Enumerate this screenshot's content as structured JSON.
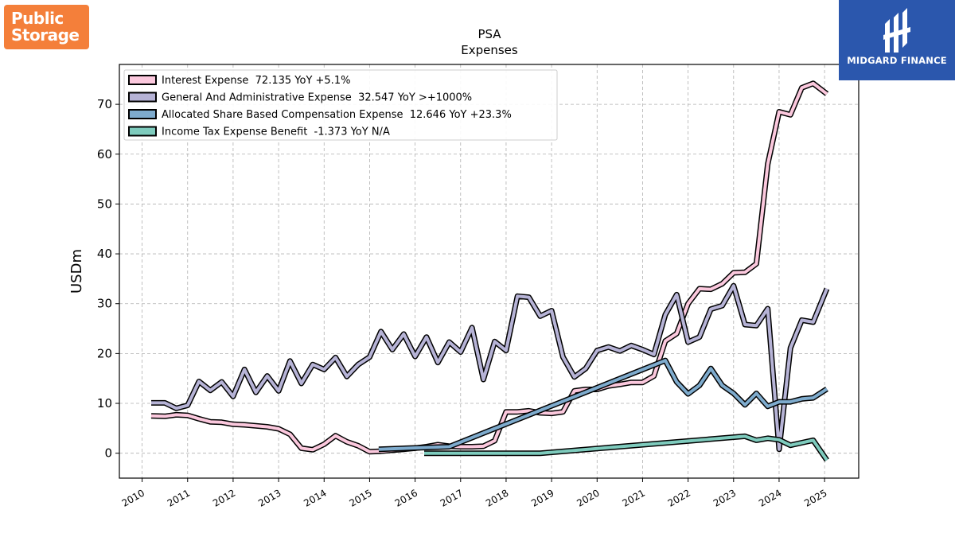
{
  "logos": {
    "left": {
      "line1": "Public",
      "line2": "Storage"
    },
    "right": {
      "text": "MIDGARD FINANCE"
    }
  },
  "colors": {
    "interest": "#fbc8dd",
    "ga": "#b6b3d6",
    "sbc": "#7eabcd",
    "tax": "#7ecbbd"
  },
  "chart_data": {
    "type": "line",
    "title": "PSA",
    "subtitle": "Expenses",
    "xlabel": "",
    "ylabel": "USDm",
    "xlim": [
      2009.5,
      2025.75
    ],
    "ylim": [
      -5,
      78
    ],
    "x_ticks": [
      "2010",
      "2011",
      "2012",
      "2013",
      "2014",
      "2015",
      "2016",
      "2017",
      "2018",
      "2019",
      "2020",
      "2021",
      "2022",
      "2023",
      "2024",
      "2025"
    ],
    "y_ticks": [
      0,
      10,
      20,
      30,
      40,
      50,
      60,
      70
    ],
    "grid": true,
    "legend_position": "top-left",
    "series": [
      {
        "name": "Interest Expense  72.135 YoY +5.1%",
        "color": "#fbc8dd",
        "points": [
          [
            2010.2,
            7.5
          ],
          [
            2010.5,
            7.4
          ],
          [
            2010.75,
            7.7
          ],
          [
            2011.0,
            7.6
          ],
          [
            2011.25,
            6.9
          ],
          [
            2011.5,
            6.3
          ],
          [
            2011.75,
            6.2
          ],
          [
            2012.0,
            5.8
          ],
          [
            2012.25,
            5.7
          ],
          [
            2012.5,
            5.5
          ],
          [
            2012.75,
            5.3
          ],
          [
            2013.0,
            4.9
          ],
          [
            2013.25,
            3.8
          ],
          [
            2013.5,
            1.0
          ],
          [
            2013.75,
            0.7
          ],
          [
            2014.0,
            1.8
          ],
          [
            2014.25,
            3.5
          ],
          [
            2014.5,
            2.3
          ],
          [
            2014.75,
            1.5
          ],
          [
            2015.0,
            0.3
          ],
          [
            2015.25,
            0.4
          ],
          [
            2015.5,
            0.6
          ],
          [
            2015.75,
            0.8
          ],
          [
            2016.0,
            1.0
          ],
          [
            2016.25,
            1.3
          ],
          [
            2016.5,
            1.7
          ],
          [
            2016.75,
            1.4
          ],
          [
            2017.0,
            1.3
          ],
          [
            2017.25,
            1.3
          ],
          [
            2017.5,
            1.4
          ],
          [
            2017.75,
            2.5
          ],
          [
            2018.0,
            8.3
          ],
          [
            2018.25,
            8.3
          ],
          [
            2018.5,
            8.5
          ],
          [
            2018.75,
            8.1
          ],
          [
            2019.0,
            8.0
          ],
          [
            2019.25,
            8.3
          ],
          [
            2019.5,
            12.5
          ],
          [
            2019.75,
            12.8
          ],
          [
            2020.0,
            12.8
          ],
          [
            2020.25,
            13.5
          ],
          [
            2020.5,
            13.8
          ],
          [
            2020.75,
            14.2
          ],
          [
            2021.0,
            14.2
          ],
          [
            2021.25,
            15.5
          ],
          [
            2021.5,
            22.5
          ],
          [
            2021.75,
            24.0
          ],
          [
            2022.0,
            30.0
          ],
          [
            2022.25,
            33.0
          ],
          [
            2022.5,
            32.9
          ],
          [
            2022.75,
            34.0
          ],
          [
            2023.0,
            36.2
          ],
          [
            2023.25,
            36.3
          ],
          [
            2023.5,
            38.0
          ],
          [
            2023.75,
            58.0
          ],
          [
            2024.0,
            68.5
          ],
          [
            2024.25,
            67.9
          ],
          [
            2024.5,
            73.3
          ],
          [
            2024.75,
            74.2
          ],
          [
            2025.05,
            72.1
          ]
        ]
      },
      {
        "name": "General And Administrative Expense  32.547 YoY >+1000%",
        "color": "#b6b3d6",
        "points": [
          [
            2010.2,
            10.1
          ],
          [
            2010.5,
            10.1
          ],
          [
            2010.75,
            9.0
          ],
          [
            2011.0,
            9.6
          ],
          [
            2011.25,
            14.4
          ],
          [
            2011.5,
            12.6
          ],
          [
            2011.75,
            14.3
          ],
          [
            2012.0,
            11.4
          ],
          [
            2012.25,
            16.8
          ],
          [
            2012.5,
            12.2
          ],
          [
            2012.75,
            15.5
          ],
          [
            2013.0,
            12.5
          ],
          [
            2013.25,
            18.5
          ],
          [
            2013.5,
            14.0
          ],
          [
            2013.75,
            17.8
          ],
          [
            2014.0,
            16.8
          ],
          [
            2014.25,
            19.2
          ],
          [
            2014.5,
            15.4
          ],
          [
            2014.75,
            17.8
          ],
          [
            2015.0,
            19.3
          ],
          [
            2015.25,
            24.4
          ],
          [
            2015.5,
            20.8
          ],
          [
            2015.75,
            23.9
          ],
          [
            2016.0,
            19.4
          ],
          [
            2016.25,
            23.3
          ],
          [
            2016.5,
            18.2
          ],
          [
            2016.75,
            22.3
          ],
          [
            2017.0,
            20.3
          ],
          [
            2017.25,
            25.2
          ],
          [
            2017.5,
            14.8
          ],
          [
            2017.75,
            22.4
          ],
          [
            2018.0,
            20.6
          ],
          [
            2018.25,
            31.5
          ],
          [
            2018.5,
            31.3
          ],
          [
            2018.75,
            27.5
          ],
          [
            2019.0,
            28.6
          ],
          [
            2019.25,
            19.3
          ],
          [
            2019.5,
            15.3
          ],
          [
            2019.75,
            17.0
          ],
          [
            2020.0,
            20.6
          ],
          [
            2020.25,
            21.3
          ],
          [
            2020.5,
            20.5
          ],
          [
            2020.75,
            21.6
          ],
          [
            2021.0,
            20.8
          ],
          [
            2021.25,
            19.8
          ],
          [
            2021.5,
            27.8
          ],
          [
            2021.75,
            31.8
          ],
          [
            2022.0,
            22.3
          ],
          [
            2022.25,
            23.3
          ],
          [
            2022.5,
            28.9
          ],
          [
            2022.75,
            29.6
          ],
          [
            2023.0,
            33.6
          ],
          [
            2023.25,
            25.8
          ],
          [
            2023.5,
            25.6
          ],
          [
            2023.75,
            29.0
          ],
          [
            2024.0,
            0.8
          ],
          [
            2024.25,
            21.1
          ],
          [
            2024.5,
            26.7
          ],
          [
            2024.75,
            26.3
          ],
          [
            2025.05,
            33.0
          ]
        ]
      },
      {
        "name": "Allocated Share Based Compensation Expense  12.646 YoY +23.3%",
        "color": "#7eabcd",
        "points": [
          [
            2015.2,
            0.8
          ],
          [
            2016.75,
            1.3
          ],
          [
            2021.5,
            18.6
          ],
          [
            2021.75,
            14.3
          ],
          [
            2022.0,
            11.9
          ],
          [
            2022.25,
            13.6
          ],
          [
            2022.5,
            17.0
          ],
          [
            2022.75,
            13.6
          ],
          [
            2023.0,
            12.0
          ],
          [
            2023.25,
            9.7
          ],
          [
            2023.5,
            12.0
          ],
          [
            2023.75,
            9.4
          ],
          [
            2024.0,
            10.3
          ],
          [
            2024.25,
            10.3
          ],
          [
            2024.5,
            10.9
          ],
          [
            2024.75,
            11.1
          ],
          [
            2025.05,
            12.9
          ]
        ]
      },
      {
        "name": "Income Tax Expense Benefit  -1.373 YoY N/A",
        "color": "#7ecbbd",
        "points": [
          [
            2016.2,
            0.0
          ],
          [
            2018.75,
            0.0
          ],
          [
            2023.25,
            3.4
          ],
          [
            2023.5,
            2.6
          ],
          [
            2023.75,
            3.0
          ],
          [
            2024.0,
            2.7
          ],
          [
            2024.25,
            1.6
          ],
          [
            2024.5,
            2.1
          ],
          [
            2024.75,
            2.6
          ],
          [
            2025.05,
            -1.4
          ]
        ]
      }
    ]
  }
}
